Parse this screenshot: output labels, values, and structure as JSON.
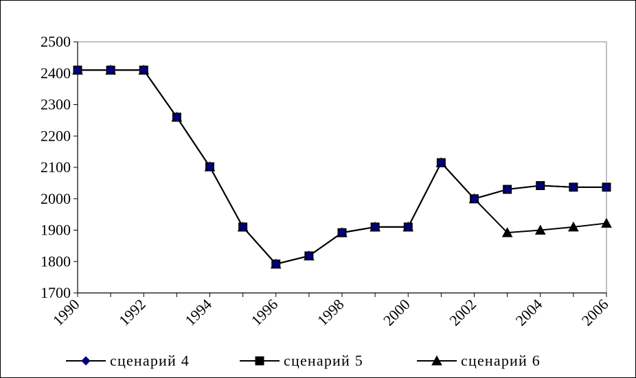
{
  "chart_data": {
    "type": "line",
    "title": "",
    "xlabel": "",
    "ylabel": "",
    "x": [
      1990,
      1991,
      1992,
      1993,
      1994,
      1995,
      1996,
      1997,
      1998,
      1999,
      2000,
      2001,
      2002,
      2003,
      2004,
      2005,
      2006
    ],
    "x_tick_labels": [
      "1990",
      "1992",
      "1994",
      "1996",
      "1998",
      "2000",
      "2002",
      "2004",
      "2006"
    ],
    "ylim": [
      1700,
      2500
    ],
    "y_ticks": [
      1700,
      1800,
      1900,
      2000,
      2100,
      2200,
      2300,
      2400,
      2500
    ],
    "grid": false,
    "legend_position": "bottom",
    "series": [
      {
        "name": "сценарий 4",
        "marker": "diamond",
        "color": "#000080",
        "values": [
          2410,
          2410,
          2410,
          2260,
          2102,
          1910,
          1792,
          1818,
          1892,
          1910,
          1910,
          2115,
          2000,
          2030,
          2042,
          2037,
          2037
        ]
      },
      {
        "name": "сценарий 5",
        "marker": "square",
        "color": "#000000",
        "values": [
          2410,
          2410,
          2410,
          2260,
          2102,
          1910,
          1792,
          1818,
          1892,
          1910,
          1910,
          2115,
          2000,
          2030,
          2042,
          2037,
          2037
        ]
      },
      {
        "name": "сценарий 6",
        "marker": "triangle",
        "color": "#000000",
        "values": [
          2410,
          2410,
          2410,
          2260,
          2102,
          1910,
          1792,
          1818,
          1892,
          1910,
          1910,
          2115,
          2000,
          1892,
          1900,
          1910,
          1922
        ]
      }
    ]
  }
}
